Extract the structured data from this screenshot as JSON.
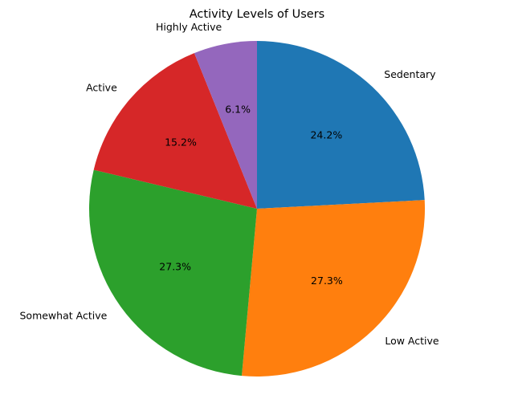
{
  "chart_data": {
    "type": "pie",
    "title": "Activity Levels of Users",
    "categories": [
      "Sedentary",
      "Low Active",
      "Somewhat Active",
      "Active",
      "Highly Active"
    ],
    "values": [
      24.2,
      27.3,
      27.3,
      15.2,
      6.1
    ],
    "percent_labels": [
      "24.2%",
      "27.3%",
      "27.3%",
      "15.2%",
      "6.1%"
    ],
    "colors": [
      "#1f77b4",
      "#ff7f0e",
      "#2ca02c",
      "#d62728",
      "#9467bd"
    ],
    "start_angle_deg": 90,
    "direction": "clockwise",
    "legend": "none"
  }
}
